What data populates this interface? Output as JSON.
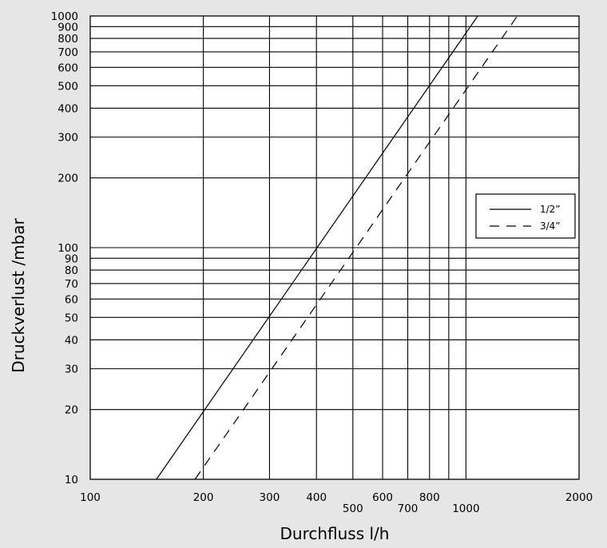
{
  "chart_data": {
    "type": "line",
    "title": "",
    "xlabel": "Durchfluss l/h",
    "ylabel": "Druckverlust /mbar",
    "x_scale": "log",
    "y_scale": "log",
    "xlim": [
      100,
      2000
    ],
    "ylim": [
      10,
      1000
    ],
    "grid": true,
    "legend_position": "right",
    "x_gridlines": [
      200,
      300,
      400,
      500,
      600,
      700,
      800,
      900,
      1000
    ],
    "y_gridlines": [
      20,
      30,
      40,
      50,
      60,
      70,
      80,
      90,
      100,
      200,
      300,
      400,
      500,
      600,
      700,
      800,
      900,
      1000
    ],
    "x_tick_labels": [
      {
        "value": 100,
        "label": "100",
        "row": "upper"
      },
      {
        "value": 200,
        "label": "200",
        "row": "upper"
      },
      {
        "value": 300,
        "label": "300",
        "row": "upper"
      },
      {
        "value": 400,
        "label": "400",
        "row": "upper"
      },
      {
        "value": 500,
        "label": "500",
        "row": "lower"
      },
      {
        "value": 600,
        "label": "600",
        "row": "upper"
      },
      {
        "value": 700,
        "label": "700",
        "row": "lower"
      },
      {
        "value": 800,
        "label": "800",
        "row": "upper"
      },
      {
        "value": 1000,
        "label": "1000",
        "row": "lower"
      },
      {
        "value": 2000,
        "label": "2000",
        "row": "upper"
      }
    ],
    "y_tick_labels": [
      {
        "value": 10,
        "label": "10"
      },
      {
        "value": 20,
        "label": "20"
      },
      {
        "value": 30,
        "label": "30"
      },
      {
        "value": 40,
        "label": "40"
      },
      {
        "value": 50,
        "label": "50"
      },
      {
        "value": 60,
        "label": "60"
      },
      {
        "value": 70,
        "label": "70"
      },
      {
        "value": 80,
        "label": "80"
      },
      {
        "value": 90,
        "label": "90"
      },
      {
        "value": 100,
        "label": "100"
      },
      {
        "value": 200,
        "label": "200"
      },
      {
        "value": 300,
        "label": "300"
      },
      {
        "value": 400,
        "label": "400"
      },
      {
        "value": 500,
        "label": "500"
      },
      {
        "value": 600,
        "label": "600"
      },
      {
        "value": 700,
        "label": "700"
      },
      {
        "value": 800,
        "label": "800"
      },
      {
        "value": 900,
        "label": "900"
      },
      {
        "value": 1000,
        "label": "1000"
      }
    ],
    "series": [
      {
        "name": "1/2”",
        "style": "solid",
        "color": "#000000",
        "x": [
          150,
          1075
        ],
        "y": [
          10,
          1000
        ]
      },
      {
        "name": "3/4”",
        "style": "dashed",
        "color": "#000000",
        "x": [
          190,
          1370
        ],
        "y": [
          10,
          1000
        ]
      }
    ]
  }
}
